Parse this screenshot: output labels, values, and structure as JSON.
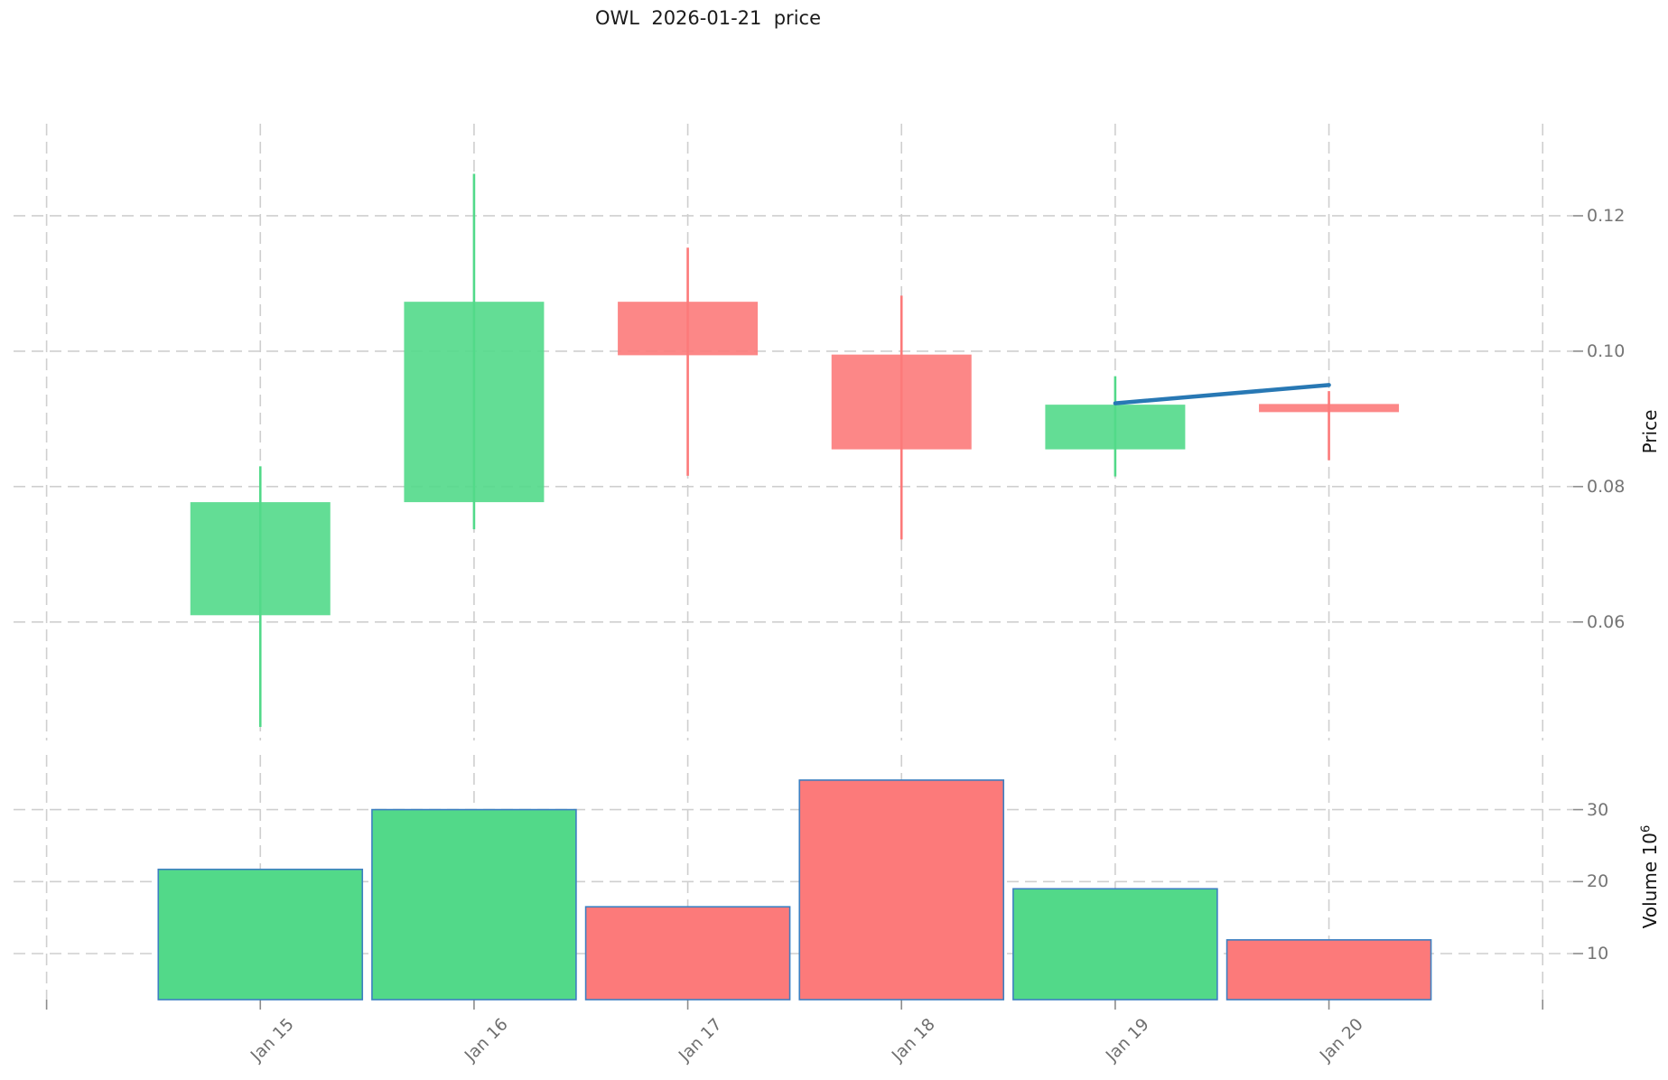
{
  "title": "OWL  2026-01-21  price",
  "axes": {
    "price_label": "Price",
    "volume_label": "Volume  10",
    "volume_exp": "6",
    "price_ticks": [
      {
        "label": "0.12",
        "value": 0.12
      },
      {
        "label": "0.10",
        "value": 0.1
      },
      {
        "label": "0.08",
        "value": 0.08
      },
      {
        "label": "0.06",
        "value": 0.06
      }
    ],
    "volume_ticks": [
      {
        "label": "30",
        "value": 30
      },
      {
        "label": "20",
        "value": 20
      },
      {
        "label": "10",
        "value": 10
      }
    ]
  },
  "chart_data": {
    "type": "candlestick_with_volume",
    "title": "OWL  2026-01-21  price",
    "categories": [
      "Jan 15",
      "Jan 16",
      "Jan 17",
      "Jan 18",
      "Jan 19",
      "Jan 20"
    ],
    "candles": [
      {
        "date": "Jan 15",
        "open": 0.061,
        "high": 0.083,
        "low": 0.0445,
        "close": 0.0777,
        "volume_m": 21.7,
        "direction": "up"
      },
      {
        "date": "Jan 16",
        "open": 0.0777,
        "high": 0.1262,
        "low": 0.0737,
        "close": 0.1073,
        "volume_m": 30.0,
        "direction": "up"
      },
      {
        "date": "Jan 17",
        "open": 0.1073,
        "high": 0.1153,
        "low": 0.0816,
        "close": 0.0994,
        "volume_m": 16.5,
        "direction": "down"
      },
      {
        "date": "Jan 18",
        "open": 0.0995,
        "high": 0.1082,
        "low": 0.0722,
        "close": 0.0855,
        "volume_m": 34.1,
        "direction": "down"
      },
      {
        "date": "Jan 19",
        "open": 0.0855,
        "high": 0.0963,
        "low": 0.0815,
        "close": 0.0921,
        "volume_m": 19.0,
        "direction": "up"
      },
      {
        "date": "Jan 20",
        "open": 0.0922,
        "high": 0.0941,
        "low": 0.0839,
        "close": 0.091,
        "volume_m": 11.9,
        "direction": "down"
      }
    ],
    "trend_line": {
      "name": "forecast-line",
      "points": [
        {
          "date": "Jan 19",
          "price": 0.0923
        },
        {
          "date": "Jan 20",
          "price": 0.095
        }
      ]
    },
    "price_axis": {
      "label": "Price",
      "range": [
        0.0425,
        0.1336
      ],
      "grid": true
    },
    "volume_axis": {
      "label": "Volume 10^6",
      "range": [
        3.6,
        37.6
      ],
      "grid": true
    },
    "x_axis": {
      "empty_slot_before": true,
      "empty_slot_after": true,
      "label_rotation_deg": 45
    }
  },
  "colors": {
    "up": "#52d989",
    "down": "#fc7a7a",
    "volume_bar_edge": "#3d7fc1",
    "trend_line": "#2878b4",
    "gridline": "#cfcfcf",
    "tick_mark": "#8c8c8c",
    "tick_text": "#757575",
    "title_text": "#1b1b1b",
    "background": "#ffffff"
  }
}
